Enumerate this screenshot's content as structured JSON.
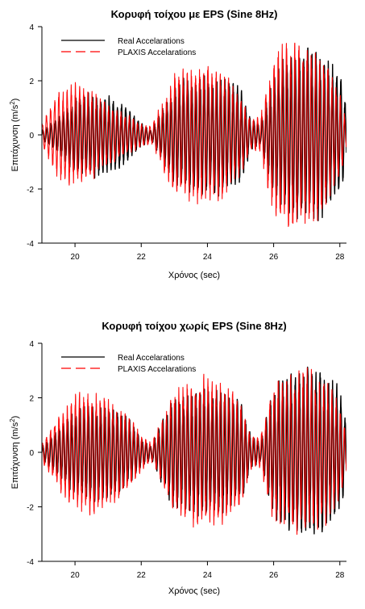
{
  "figure": {
    "colors": {
      "real": "#000000",
      "plaxis": "#ff0000",
      "axis": "#000000"
    }
  },
  "chart_data": [
    {
      "type": "line",
      "title": "Κορυφή τοίχου με EPS (Sine 8Hz)",
      "xlabel": "Χρόνος (sec)",
      "ylabel": "Επιτάχυνση (m/s2)",
      "ylabel_base": "Επιτάχυνση (m/s",
      "ylabel_sup": "2",
      "ylabel_close": ")",
      "xlim": [
        19,
        28.2
      ],
      "ylim": [
        -4,
        4
      ],
      "xticks": [
        20,
        22,
        24,
        26,
        28
      ],
      "yticks": [
        -4,
        -2,
        0,
        2,
        4
      ],
      "frequency_hz": 8,
      "grid": false,
      "legend_position": "top-left",
      "series": [
        {
          "name": "Real Accelarations",
          "color": "#000000",
          "style": "solid",
          "envelope": [
            {
              "x": 19.0,
              "amp": 0.15
            },
            {
              "x": 19.5,
              "amp": 0.6
            },
            {
              "x": 20.0,
              "amp": 1.2
            },
            {
              "x": 20.5,
              "amp": 1.4
            },
            {
              "x": 21.0,
              "amp": 1.25
            },
            {
              "x": 21.5,
              "amp": 1.0
            },
            {
              "x": 22.0,
              "amp": 0.4
            },
            {
              "x": 22.3,
              "amp": 0.15
            },
            {
              "x": 22.6,
              "amp": 0.8
            },
            {
              "x": 23.0,
              "amp": 1.6
            },
            {
              "x": 23.5,
              "amp": 1.95
            },
            {
              "x": 24.0,
              "amp": 2.0
            },
            {
              "x": 24.5,
              "amp": 1.95
            },
            {
              "x": 25.0,
              "amp": 1.6
            },
            {
              "x": 25.3,
              "amp": 0.6
            },
            {
              "x": 25.6,
              "amp": 0.3
            },
            {
              "x": 25.9,
              "amp": 1.6
            },
            {
              "x": 26.2,
              "amp": 2.4
            },
            {
              "x": 26.6,
              "amp": 2.75
            },
            {
              "x": 27.0,
              "amp": 2.85
            },
            {
              "x": 27.5,
              "amp": 2.75
            },
            {
              "x": 28.0,
              "amp": 2.0
            },
            {
              "x": 28.2,
              "amp": 1.0
            }
          ]
        },
        {
          "name": "PLAXIS Accelarations",
          "color": "#ff0000",
          "style": "dashed",
          "envelope": [
            {
              "x": 19.0,
              "amp": 0.4
            },
            {
              "x": 19.5,
              "amp": 1.5
            },
            {
              "x": 20.0,
              "amp": 1.7
            },
            {
              "x": 20.5,
              "amp": 1.5
            },
            {
              "x": 21.0,
              "amp": 1.0
            },
            {
              "x": 21.5,
              "amp": 0.7
            },
            {
              "x": 22.0,
              "amp": 0.4
            },
            {
              "x": 22.3,
              "amp": 0.3
            },
            {
              "x": 22.6,
              "amp": 1.0
            },
            {
              "x": 23.0,
              "amp": 2.0
            },
            {
              "x": 23.5,
              "amp": 2.2
            },
            {
              "x": 24.0,
              "amp": 2.3
            },
            {
              "x": 24.5,
              "amp": 2.1
            },
            {
              "x": 25.0,
              "amp": 1.3
            },
            {
              "x": 25.3,
              "amp": 0.5
            },
            {
              "x": 25.6,
              "amp": 0.6
            },
            {
              "x": 25.9,
              "amp": 2.2
            },
            {
              "x": 26.2,
              "amp": 3.0
            },
            {
              "x": 26.6,
              "amp": 3.1
            },
            {
              "x": 27.0,
              "amp": 3.0
            },
            {
              "x": 27.5,
              "amp": 2.6
            },
            {
              "x": 28.0,
              "amp": 1.4
            },
            {
              "x": 28.2,
              "amp": 0.4
            }
          ]
        }
      ]
    },
    {
      "type": "line",
      "title": "Κορυφή τοίχου χωρίς EPS (Sine 8Hz)",
      "xlabel": "Χρόνος (sec)",
      "ylabel": "Επιτάχυνση (m/s2)",
      "ylabel_base": "Επιτάχυνση (m/s",
      "ylabel_sup": "2",
      "ylabel_close": ")",
      "xlim": [
        19,
        28.2
      ],
      "ylim": [
        -4,
        4
      ],
      "xticks": [
        20,
        22,
        24,
        26,
        28
      ],
      "yticks": [
        -4,
        -2,
        0,
        2,
        4
      ],
      "frequency_hz": 8,
      "grid": false,
      "legend_position": "top-left",
      "series": [
        {
          "name": "Real Accelarations",
          "color": "#000000",
          "style": "solid",
          "envelope": [
            {
              "x": 19.0,
              "amp": 0.2
            },
            {
              "x": 19.5,
              "amp": 0.8
            },
            {
              "x": 20.0,
              "amp": 1.4
            },
            {
              "x": 20.5,
              "amp": 1.6
            },
            {
              "x": 21.0,
              "amp": 1.5
            },
            {
              "x": 21.5,
              "amp": 1.3
            },
            {
              "x": 22.0,
              "amp": 0.5
            },
            {
              "x": 22.3,
              "amp": 0.2
            },
            {
              "x": 22.6,
              "amp": 1.0
            },
            {
              "x": 23.0,
              "amp": 1.8
            },
            {
              "x": 23.5,
              "amp": 2.0
            },
            {
              "x": 24.0,
              "amp": 2.1
            },
            {
              "x": 24.5,
              "amp": 2.0
            },
            {
              "x": 25.0,
              "amp": 1.7
            },
            {
              "x": 25.3,
              "amp": 0.6
            },
            {
              "x": 25.6,
              "amp": 0.3
            },
            {
              "x": 25.9,
              "amp": 1.8
            },
            {
              "x": 26.2,
              "amp": 2.5
            },
            {
              "x": 26.6,
              "amp": 2.7
            },
            {
              "x": 27.0,
              "amp": 2.8
            },
            {
              "x": 27.5,
              "amp": 2.8
            },
            {
              "x": 28.0,
              "amp": 2.1
            },
            {
              "x": 28.2,
              "amp": 1.0
            }
          ]
        },
        {
          "name": "PLAXIS Accelarations",
          "color": "#ff0000",
          "style": "dashed",
          "envelope": [
            {
              "x": 19.0,
              "amp": 0.3
            },
            {
              "x": 19.5,
              "amp": 1.2
            },
            {
              "x": 20.0,
              "amp": 1.9
            },
            {
              "x": 20.5,
              "amp": 2.0
            },
            {
              "x": 21.0,
              "amp": 1.8
            },
            {
              "x": 21.5,
              "amp": 1.4
            },
            {
              "x": 22.0,
              "amp": 0.6
            },
            {
              "x": 22.3,
              "amp": 0.3
            },
            {
              "x": 22.6,
              "amp": 1.0
            },
            {
              "x": 23.0,
              "amp": 2.0
            },
            {
              "x": 23.5,
              "amp": 2.3
            },
            {
              "x": 24.0,
              "amp": 2.5
            },
            {
              "x": 24.5,
              "amp": 2.3
            },
            {
              "x": 25.0,
              "amp": 1.8
            },
            {
              "x": 25.3,
              "amp": 0.6
            },
            {
              "x": 25.6,
              "amp": 0.5
            },
            {
              "x": 25.9,
              "amp": 2.0
            },
            {
              "x": 26.2,
              "amp": 2.4
            },
            {
              "x": 26.6,
              "amp": 2.6
            },
            {
              "x": 27.0,
              "amp": 2.7
            },
            {
              "x": 27.5,
              "amp": 2.5
            },
            {
              "x": 28.0,
              "amp": 1.6
            },
            {
              "x": 28.2,
              "amp": 0.6
            }
          ]
        }
      ]
    }
  ]
}
